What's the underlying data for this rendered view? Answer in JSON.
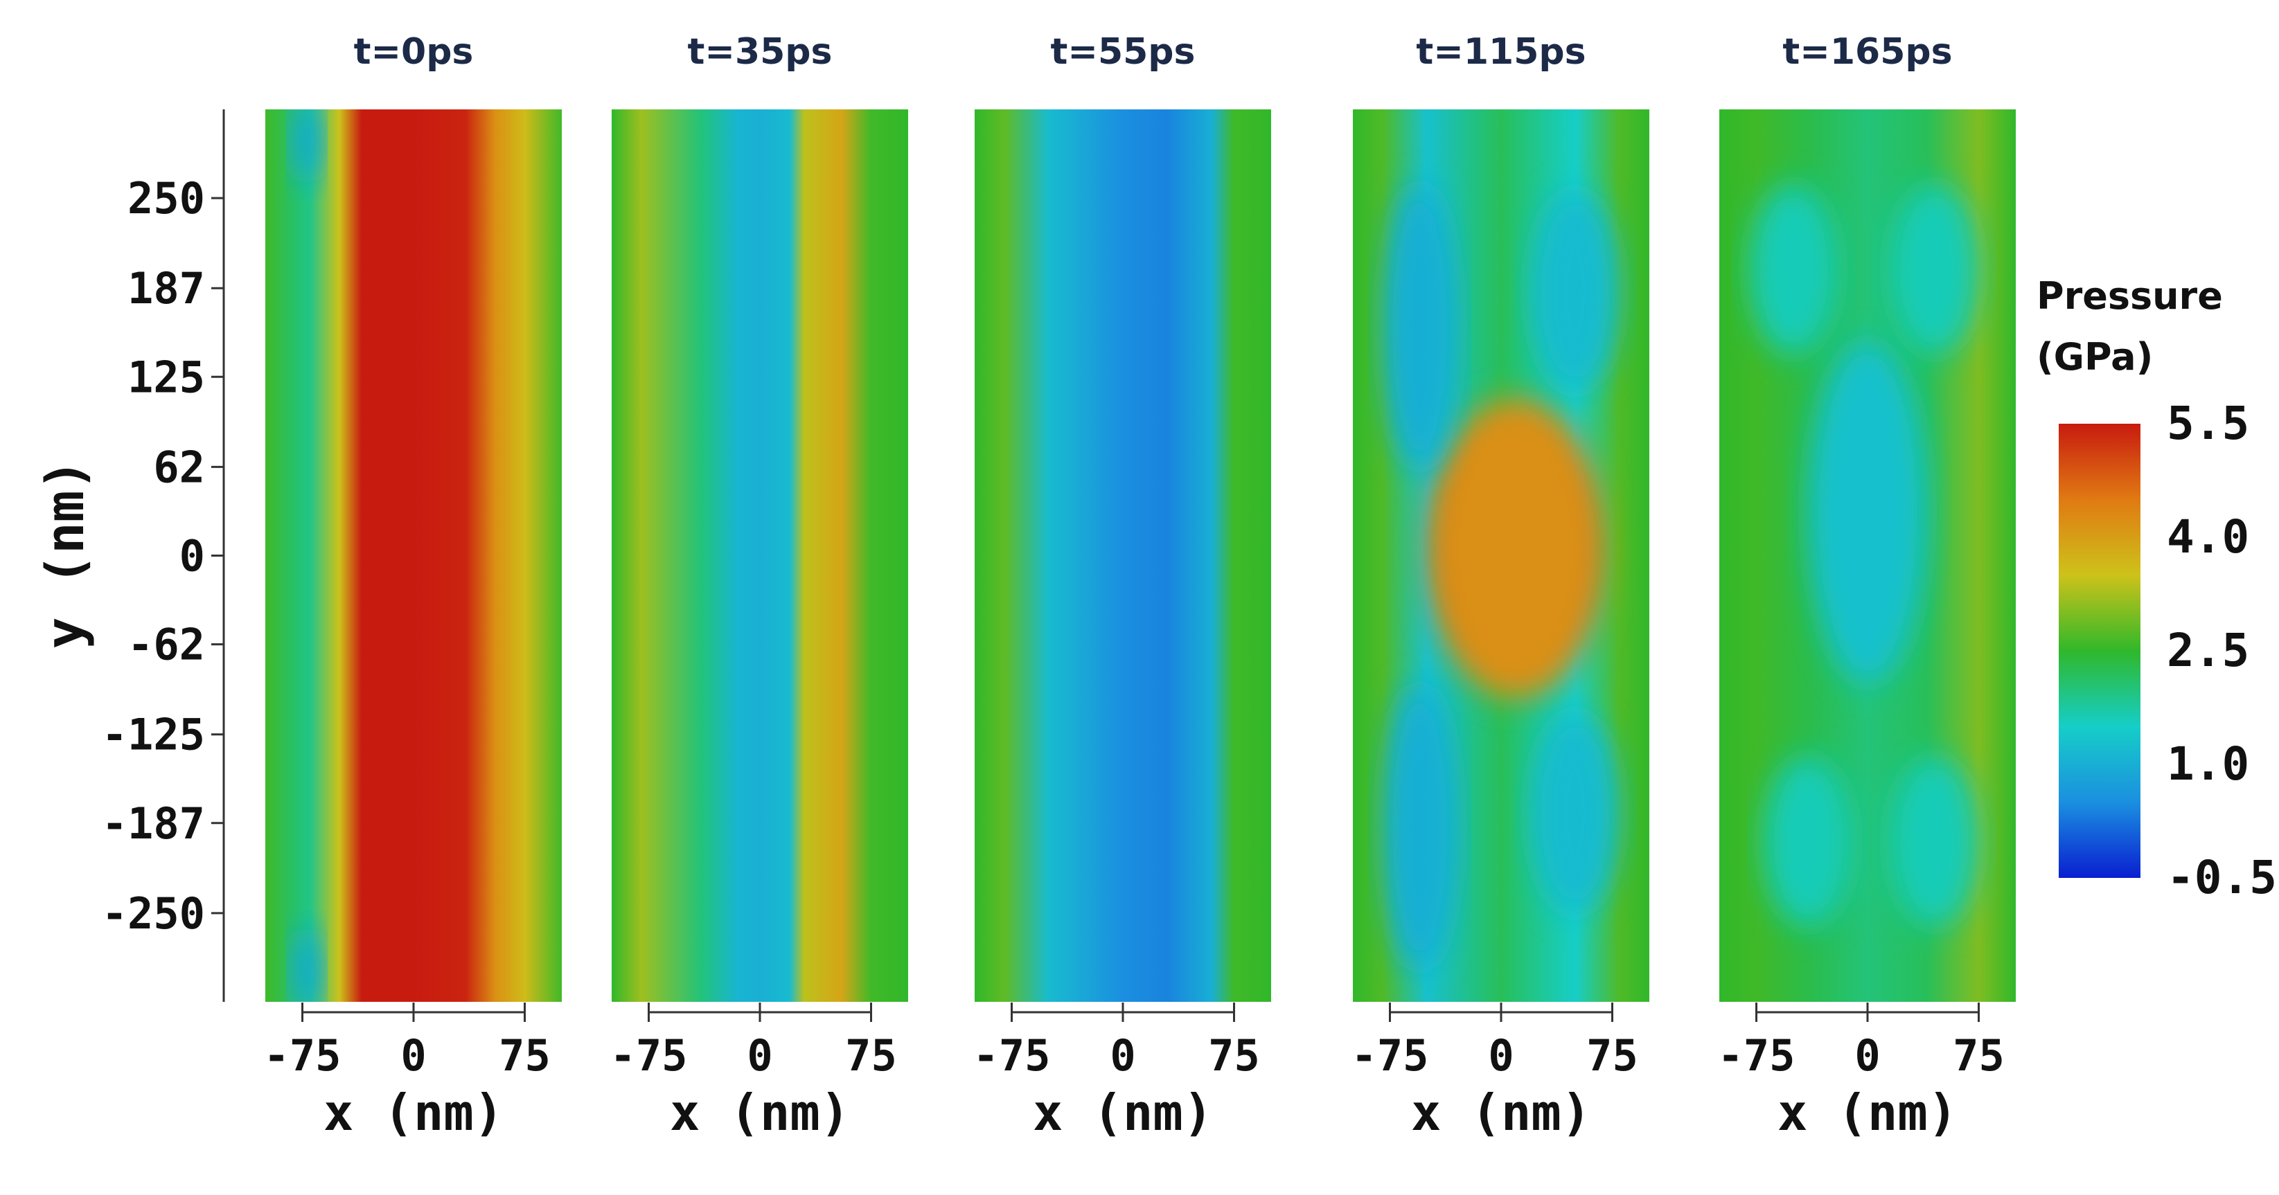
{
  "chart_data": {
    "type": "heatmap",
    "value_quantity": "pressure",
    "value_unit": "GPa",
    "xlabel": "x (nm)",
    "ylabel": "y (nm)",
    "xticks": [
      -75,
      0,
      75
    ],
    "xtick_labels": [
      "-75",
      "0",
      "75"
    ],
    "xlim": [
      -100,
      100
    ],
    "yticks": [
      250,
      187,
      125,
      62,
      0,
      -62,
      -125,
      -187,
      -250
    ],
    "ytick_labels": [
      "250",
      "187",
      "125",
      "62",
      "0",
      "-62",
      "-125",
      "-187",
      "-250"
    ],
    "ylim": [
      -312,
      312
    ],
    "grid": false,
    "colorbar": {
      "title_line1": "Pressure",
      "title_line2": "(GPa)",
      "min": -0.5,
      "max": 5.5,
      "tick_labels": [
        "5.5",
        "4.0",
        "2.5",
        "1.0",
        "-0.5"
      ],
      "tick_values": [
        5.5,
        4.0,
        2.5,
        1.0,
        -0.5
      ],
      "placement": "right",
      "colors": [
        "#0a1fd0",
        "#1b8fe0",
        "#16cec8",
        "#30b82a",
        "#cdc21a",
        "#e07a12",
        "#c81b10"
      ]
    },
    "panels": [
      {
        "title": "t=0ps",
        "description_values": "uniform along y; high-pressure band at center",
        "profile_x": [
          -100,
          -80,
          -70,
          -50,
          -35,
          0,
          35,
          55,
          75,
          100
        ],
        "profile_p": [
          2.6,
          2.1,
          1.9,
          3.5,
          5.5,
          5.5,
          5.4,
          4.2,
          3.6,
          2.6
        ],
        "blobs": [
          {
            "x": -72,
            "y": 290,
            "rx": 10,
            "ry": 30,
            "p": 0.9
          },
          {
            "x": -72,
            "y": -290,
            "rx": 10,
            "ry": 30,
            "p": 0.9
          }
        ]
      },
      {
        "title": "t=35ps",
        "description_values": "low-pressure band at center, elevated band at x~50nm",
        "profile_x": [
          -100,
          -80,
          -40,
          -15,
          0,
          20,
          30,
          55,
          75,
          100
        ],
        "profile_p": [
          2.5,
          3.2,
          2.0,
          1.1,
          1.0,
          1.2,
          3.4,
          3.9,
          2.6,
          2.5
        ],
        "blobs": []
      },
      {
        "title": "t=55ps",
        "description_values": "broad low-pressure region",
        "profile_x": [
          -100,
          -80,
          -50,
          0,
          30,
          60,
          75,
          100
        ],
        "profile_p": [
          2.5,
          2.8,
          1.2,
          0.5,
          0.4,
          1.0,
          2.6,
          2.5
        ],
        "blobs": []
      },
      {
        "title": "t=115ps",
        "description_values": "pressure concentration near center",
        "profile_x": [
          -100,
          -80,
          -50,
          0,
          50,
          80,
          100
        ],
        "profile_p": [
          2.5,
          2.7,
          1.3,
          2.2,
          1.5,
          2.7,
          2.5
        ],
        "blobs": [
          {
            "x": 10,
            "y": 5,
            "rx": 45,
            "ry": 75,
            "p": 5.5
          },
          {
            "x": 10,
            "y": 5,
            "rx": 60,
            "ry": 105,
            "p": 4.2
          },
          {
            "x": 50,
            "y": 185,
            "rx": 30,
            "ry": 70,
            "p": 1.2
          },
          {
            "x": 50,
            "y": -180,
            "rx": 30,
            "ry": 70,
            "p": 1.2
          },
          {
            "x": -55,
            "y": 160,
            "rx": 25,
            "ry": 100,
            "p": 1.0
          },
          {
            "x": -55,
            "y": -190,
            "rx": 25,
            "ry": 100,
            "p": 1.0
          }
        ]
      },
      {
        "title": "t=165ps",
        "description_values": "mixed moderate pressure",
        "profile_x": [
          -100,
          -75,
          -40,
          0,
          40,
          75,
          100
        ],
        "profile_p": [
          2.5,
          2.6,
          2.3,
          2.0,
          2.2,
          3.0,
          2.5
        ],
        "blobs": [
          {
            "x": 0,
            "y": 30,
            "rx": 40,
            "ry": 120,
            "p": 1.3
          },
          {
            "x": -50,
            "y": 200,
            "rx": 30,
            "ry": 60,
            "p": 1.6
          },
          {
            "x": 45,
            "y": 200,
            "rx": 30,
            "ry": 60,
            "p": 1.6
          },
          {
            "x": -40,
            "y": -200,
            "rx": 30,
            "ry": 60,
            "p": 1.6
          },
          {
            "x": 45,
            "y": -200,
            "rx": 30,
            "ry": 60,
            "p": 1.6
          }
        ]
      }
    ]
  }
}
